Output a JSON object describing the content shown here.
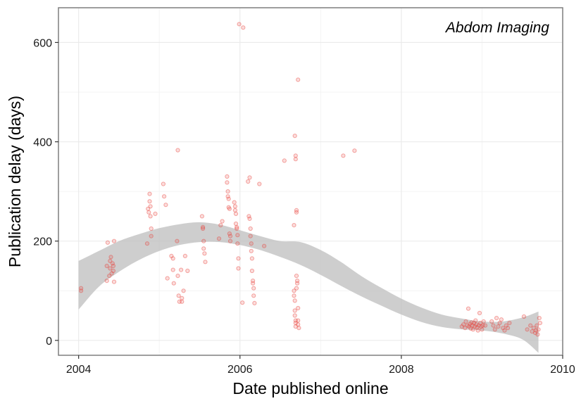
{
  "chart_data": {
    "type": "scatter",
    "title": "",
    "annotation": "Abdom Imaging",
    "xlabel": "Date published online",
    "ylabel": "Publication delay (days)",
    "xlim": [
      2003.75,
      2010.0
    ],
    "ylim": [
      -30,
      670
    ],
    "x_ticks": [
      2004,
      2006,
      2008,
      2010
    ],
    "y_ticks": [
      0,
      200,
      400,
      600
    ],
    "grid": true,
    "point_color": "#e8423c",
    "band_color": "#bdbdbd",
    "smooth_band": {
      "x": [
        2004.0,
        2004.25,
        2004.5,
        2004.75,
        2005.0,
        2005.25,
        2005.5,
        2005.75,
        2006.0,
        2006.25,
        2006.5,
        2006.75,
        2007.0,
        2007.25,
        2007.5,
        2007.75,
        2008.0,
        2008.25,
        2008.5,
        2008.75,
        2009.0,
        2009.25,
        2009.5,
        2009.7
      ],
      "lower": [
        62,
        108,
        138,
        162,
        180,
        192,
        198,
        198,
        192,
        182,
        168,
        152,
        132,
        110,
        89,
        70,
        52,
        37,
        27,
        22,
        20,
        14,
        2,
        -25
      ],
      "upper": [
        160,
        180,
        200,
        214,
        226,
        234,
        238,
        233,
        222,
        210,
        200,
        198,
        182,
        158,
        130,
        106,
        84,
        66,
        52,
        44,
        38,
        38,
        46,
        58
      ]
    },
    "points": [
      {
        "x": 2004.03,
        "y": 100
      },
      {
        "x": 2004.03,
        "y": 105
      },
      {
        "x": 2004.35,
        "y": 120
      },
      {
        "x": 2004.35,
        "y": 150
      },
      {
        "x": 2004.36,
        "y": 197
      },
      {
        "x": 2004.38,
        "y": 130
      },
      {
        "x": 2004.39,
        "y": 145
      },
      {
        "x": 2004.39,
        "y": 160
      },
      {
        "x": 2004.4,
        "y": 168
      },
      {
        "x": 2004.41,
        "y": 135
      },
      {
        "x": 2004.42,
        "y": 155
      },
      {
        "x": 2004.43,
        "y": 140
      },
      {
        "x": 2004.43,
        "y": 150
      },
      {
        "x": 2004.44,
        "y": 118
      },
      {
        "x": 2004.44,
        "y": 200
      },
      {
        "x": 2004.85,
        "y": 195
      },
      {
        "x": 2004.86,
        "y": 265
      },
      {
        "x": 2004.87,
        "y": 258
      },
      {
        "x": 2004.88,
        "y": 295
      },
      {
        "x": 2004.88,
        "y": 280
      },
      {
        "x": 2004.89,
        "y": 270
      },
      {
        "x": 2004.89,
        "y": 250
      },
      {
        "x": 2004.9,
        "y": 225
      },
      {
        "x": 2004.9,
        "y": 210
      },
      {
        "x": 2004.95,
        "y": 255
      },
      {
        "x": 2005.05,
        "y": 315
      },
      {
        "x": 2005.06,
        "y": 290
      },
      {
        "x": 2005.08,
        "y": 273
      },
      {
        "x": 2005.1,
        "y": 125
      },
      {
        "x": 2005.15,
        "y": 170
      },
      {
        "x": 2005.17,
        "y": 165
      },
      {
        "x": 2005.17,
        "y": 142
      },
      {
        "x": 2005.18,
        "y": 115
      },
      {
        "x": 2005.22,
        "y": 200
      },
      {
        "x": 2005.23,
        "y": 383
      },
      {
        "x": 2005.23,
        "y": 130
      },
      {
        "x": 2005.24,
        "y": 90
      },
      {
        "x": 2005.25,
        "y": 78
      },
      {
        "x": 2005.27,
        "y": 142
      },
      {
        "x": 2005.28,
        "y": 85
      },
      {
        "x": 2005.28,
        "y": 78
      },
      {
        "x": 2005.3,
        "y": 100
      },
      {
        "x": 2005.32,
        "y": 170
      },
      {
        "x": 2005.35,
        "y": 140
      },
      {
        "x": 2005.53,
        "y": 250
      },
      {
        "x": 2005.54,
        "y": 228
      },
      {
        "x": 2005.54,
        "y": 225
      },
      {
        "x": 2005.55,
        "y": 200
      },
      {
        "x": 2005.55,
        "y": 185
      },
      {
        "x": 2005.56,
        "y": 175
      },
      {
        "x": 2005.57,
        "y": 158
      },
      {
        "x": 2005.74,
        "y": 205
      },
      {
        "x": 2005.76,
        "y": 232
      },
      {
        "x": 2005.78,
        "y": 240
      },
      {
        "x": 2005.84,
        "y": 330
      },
      {
        "x": 2005.84,
        "y": 318
      },
      {
        "x": 2005.85,
        "y": 300
      },
      {
        "x": 2005.85,
        "y": 290
      },
      {
        "x": 2005.86,
        "y": 285
      },
      {
        "x": 2005.86,
        "y": 268
      },
      {
        "x": 2005.87,
        "y": 265
      },
      {
        "x": 2005.87,
        "y": 215
      },
      {
        "x": 2005.88,
        "y": 210
      },
      {
        "x": 2005.88,
        "y": 200
      },
      {
        "x": 2005.93,
        "y": 278
      },
      {
        "x": 2005.94,
        "y": 270
      },
      {
        "x": 2005.94,
        "y": 262
      },
      {
        "x": 2005.95,
        "y": 255
      },
      {
        "x": 2005.95,
        "y": 235
      },
      {
        "x": 2005.96,
        "y": 228
      },
      {
        "x": 2005.96,
        "y": 225
      },
      {
        "x": 2005.97,
        "y": 212
      },
      {
        "x": 2005.97,
        "y": 195
      },
      {
        "x": 2005.98,
        "y": 145
      },
      {
        "x": 2005.98,
        "y": 165
      },
      {
        "x": 2005.99,
        "y": 637
      },
      {
        "x": 2006.04,
        "y": 630
      },
      {
        "x": 2006.03,
        "y": 76
      },
      {
        "x": 2006.1,
        "y": 320
      },
      {
        "x": 2006.12,
        "y": 328
      },
      {
        "x": 2006.11,
        "y": 250
      },
      {
        "x": 2006.12,
        "y": 245
      },
      {
        "x": 2006.13,
        "y": 225
      },
      {
        "x": 2006.13,
        "y": 210
      },
      {
        "x": 2006.14,
        "y": 195
      },
      {
        "x": 2006.14,
        "y": 180
      },
      {
        "x": 2006.15,
        "y": 165
      },
      {
        "x": 2006.15,
        "y": 140
      },
      {
        "x": 2006.16,
        "y": 120
      },
      {
        "x": 2006.16,
        "y": 115
      },
      {
        "x": 2006.17,
        "y": 105
      },
      {
        "x": 2006.17,
        "y": 90
      },
      {
        "x": 2006.18,
        "y": 75
      },
      {
        "x": 2006.24,
        "y": 315
      },
      {
        "x": 2006.3,
        "y": 190
      },
      {
        "x": 2006.55,
        "y": 362
      },
      {
        "x": 2006.67,
        "y": 232
      },
      {
        "x": 2006.68,
        "y": 412
      },
      {
        "x": 2006.69,
        "y": 372
      },
      {
        "x": 2006.69,
        "y": 365
      },
      {
        "x": 2006.7,
        "y": 262
      },
      {
        "x": 2006.7,
        "y": 258
      },
      {
        "x": 2006.72,
        "y": 525
      },
      {
        "x": 2006.67,
        "y": 100
      },
      {
        "x": 2006.67,
        "y": 90
      },
      {
        "x": 2006.68,
        "y": 80
      },
      {
        "x": 2006.68,
        "y": 60
      },
      {
        "x": 2006.68,
        "y": 50
      },
      {
        "x": 2006.69,
        "y": 40
      },
      {
        "x": 2006.69,
        "y": 35
      },
      {
        "x": 2006.69,
        "y": 28
      },
      {
        "x": 2006.7,
        "y": 105
      },
      {
        "x": 2006.7,
        "y": 130
      },
      {
        "x": 2006.71,
        "y": 120
      },
      {
        "x": 2006.71,
        "y": 115
      },
      {
        "x": 2006.72,
        "y": 65
      },
      {
        "x": 2006.72,
        "y": 40
      },
      {
        "x": 2006.72,
        "y": 32
      },
      {
        "x": 2006.73,
        "y": 25
      },
      {
        "x": 2007.28,
        "y": 372
      },
      {
        "x": 2007.42,
        "y": 382
      },
      {
        "x": 2008.75,
        "y": 28
      },
      {
        "x": 2008.77,
        "y": 32
      },
      {
        "x": 2008.79,
        "y": 25
      },
      {
        "x": 2008.8,
        "y": 38
      },
      {
        "x": 2008.82,
        "y": 30
      },
      {
        "x": 2008.83,
        "y": 64
      },
      {
        "x": 2008.84,
        "y": 28
      },
      {
        "x": 2008.85,
        "y": 33
      },
      {
        "x": 2008.86,
        "y": 24
      },
      {
        "x": 2008.87,
        "y": 36
      },
      {
        "x": 2008.88,
        "y": 30
      },
      {
        "x": 2008.89,
        "y": 22
      },
      {
        "x": 2008.9,
        "y": 35
      },
      {
        "x": 2008.91,
        "y": 28
      },
      {
        "x": 2008.92,
        "y": 40
      },
      {
        "x": 2008.93,
        "y": 32
      },
      {
        "x": 2008.94,
        "y": 26
      },
      {
        "x": 2008.95,
        "y": 20
      },
      {
        "x": 2008.96,
        "y": 30
      },
      {
        "x": 2008.97,
        "y": 55
      },
      {
        "x": 2008.98,
        "y": 35
      },
      {
        "x": 2008.99,
        "y": 28
      },
      {
        "x": 2009.0,
        "y": 22
      },
      {
        "x": 2009.01,
        "y": 30
      },
      {
        "x": 2009.02,
        "y": 38
      },
      {
        "x": 2009.04,
        "y": 30
      },
      {
        "x": 2009.12,
        "y": 38
      },
      {
        "x": 2009.14,
        "y": 30
      },
      {
        "x": 2009.16,
        "y": 22
      },
      {
        "x": 2009.18,
        "y": 45
      },
      {
        "x": 2009.2,
        "y": 28
      },
      {
        "x": 2009.22,
        "y": 35
      },
      {
        "x": 2009.24,
        "y": 42
      },
      {
        "x": 2009.26,
        "y": 25
      },
      {
        "x": 2009.28,
        "y": 20
      },
      {
        "x": 2009.3,
        "y": 30
      },
      {
        "x": 2009.32,
        "y": 25
      },
      {
        "x": 2009.34,
        "y": 35
      },
      {
        "x": 2009.52,
        "y": 48
      },
      {
        "x": 2009.56,
        "y": 22
      },
      {
        "x": 2009.6,
        "y": 30
      },
      {
        "x": 2009.62,
        "y": 18
      },
      {
        "x": 2009.64,
        "y": 25
      },
      {
        "x": 2009.66,
        "y": 15
      },
      {
        "x": 2009.67,
        "y": 20
      },
      {
        "x": 2009.68,
        "y": 30
      },
      {
        "x": 2009.69,
        "y": 12
      },
      {
        "x": 2009.7,
        "y": 22
      },
      {
        "x": 2009.71,
        "y": 45
      },
      {
        "x": 2009.72,
        "y": 35
      }
    ]
  }
}
